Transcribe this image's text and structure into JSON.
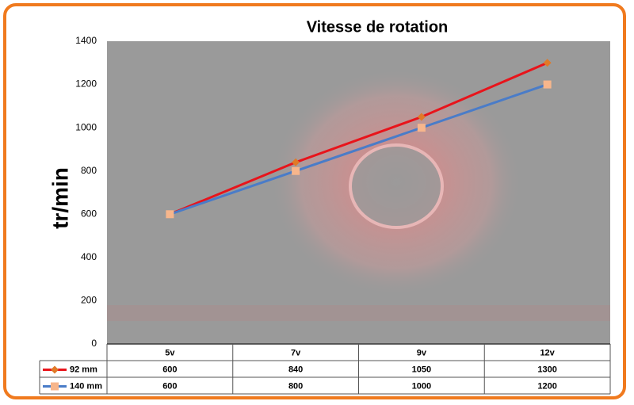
{
  "chart_data": {
    "type": "line",
    "title": "Vitesse de rotation",
    "y_label": "tr/min",
    "categories": [
      "5v",
      "7v",
      "9v",
      "12v"
    ],
    "series": [
      {
        "name": "92 mm",
        "color": "#e8141b",
        "marker_color": "#e07a28",
        "marker": "diamond",
        "values": [
          600,
          840,
          1050,
          1300
        ]
      },
      {
        "name": "140 mm",
        "color": "#4a7cc8",
        "marker_color": "#f7b68c",
        "marker": "square",
        "values": [
          600,
          800,
          1000,
          1200
        ]
      }
    ],
    "ylim": [
      0,
      1400
    ],
    "yticks": [
      0,
      200,
      400,
      600,
      800,
      1000,
      1200,
      1400
    ],
    "grid": false,
    "data_table": true
  }
}
